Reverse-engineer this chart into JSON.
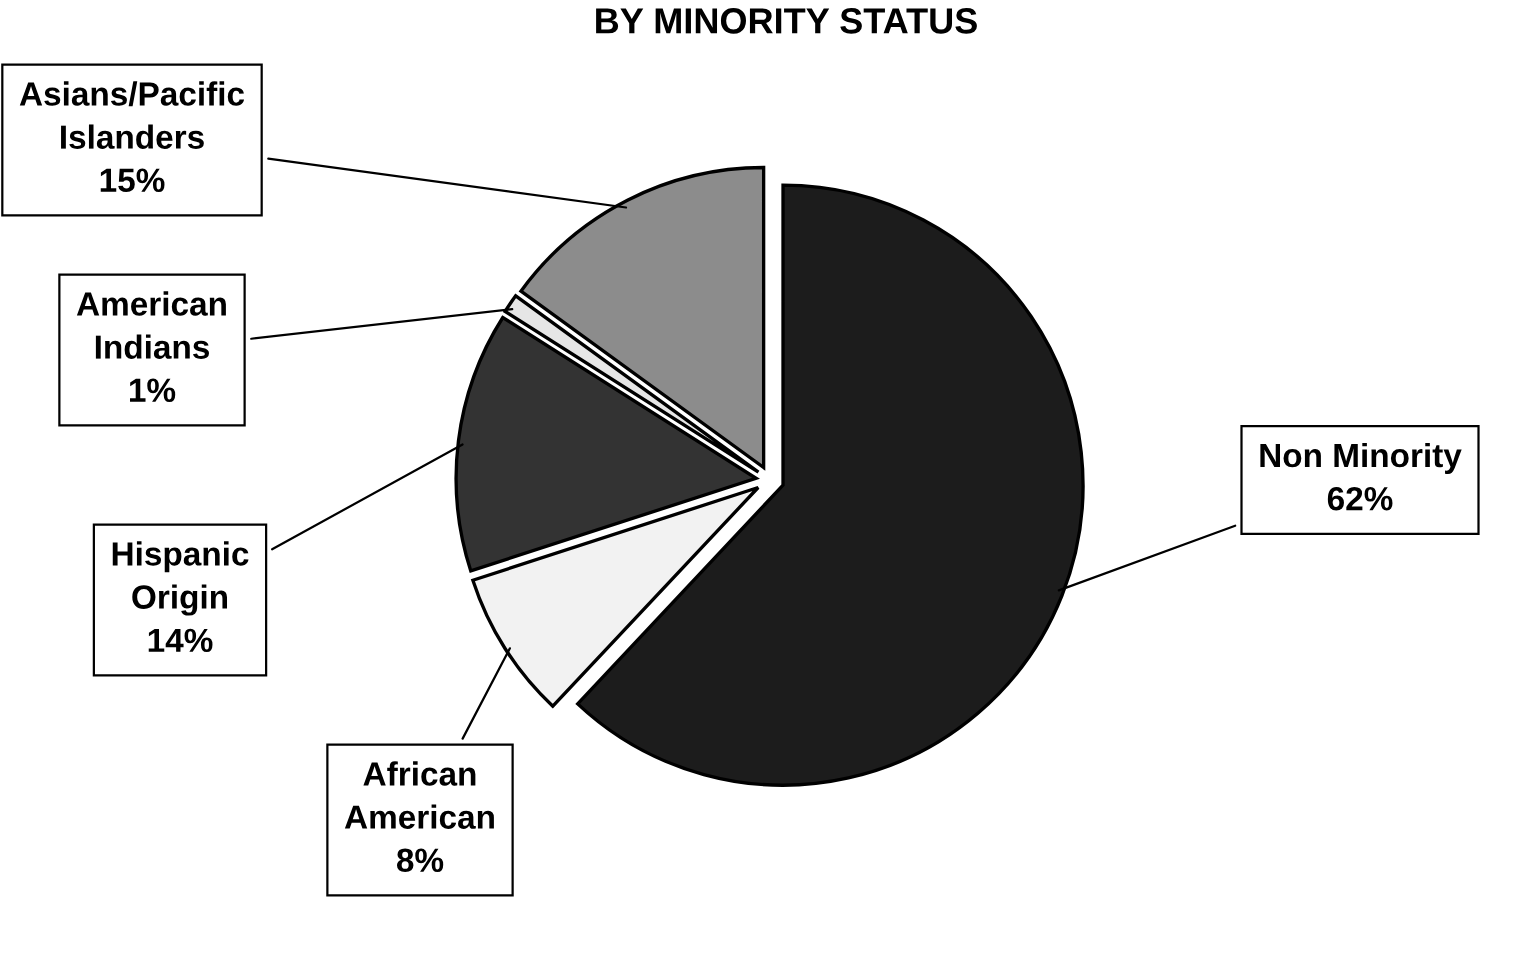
{
  "chart_data": {
    "type": "pie",
    "title": "BY MINORITY STATUS",
    "categories": [
      "Non Minority",
      "African American",
      "Hispanic Origin",
      "American Indians",
      "Asians/Pacific Islanders"
    ],
    "values": [
      62,
      8,
      14,
      1,
      15
    ],
    "value_labels": [
      "62%",
      "8%",
      "14%",
      "1%",
      "15%"
    ],
    "colors": [
      "#1c1c1c",
      "#f2f2f2",
      "#333333",
      "#e6e6e6",
      "#8c8c8c"
    ],
    "legend": false
  }
}
